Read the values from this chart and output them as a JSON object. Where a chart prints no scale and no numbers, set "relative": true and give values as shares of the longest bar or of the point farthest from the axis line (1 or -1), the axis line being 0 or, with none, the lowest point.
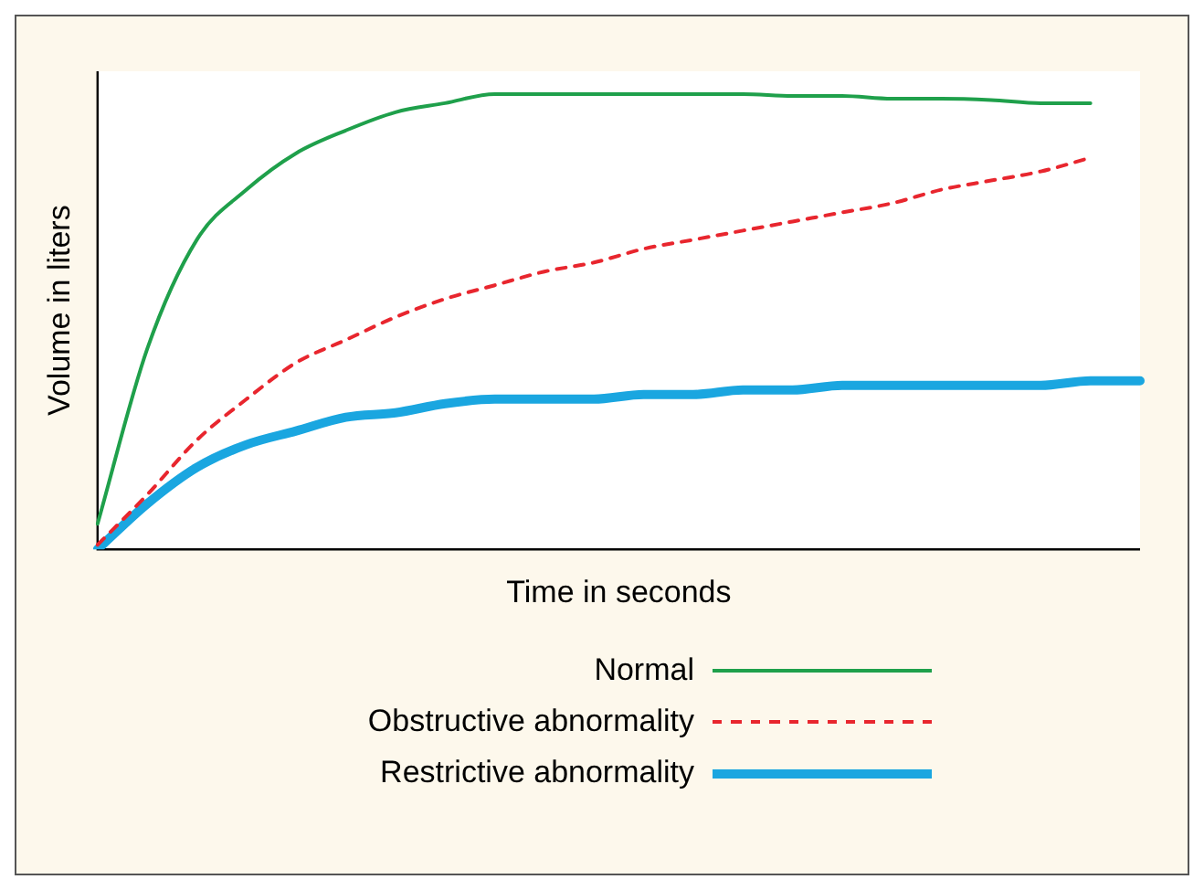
{
  "chart_data": {
    "type": "line",
    "relative": true,
    "xlabel": "Time in seconds",
    "ylabel": "Volume in liters",
    "legend": "bottom",
    "grid": false,
    "marker": "none",
    "categories": [
      null,
      null,
      null,
      null,
      null,
      null,
      null,
      null,
      null,
      null,
      null,
      null,
      null,
      null,
      null,
      null,
      null,
      null,
      null,
      null,
      null,
      null
    ],
    "series": [
      {
        "name": "Normal",
        "color": "#1fa04b",
        "line_style": "solid",
        "values": [
          0.056,
          0.44,
          0.68,
          0.79,
          0.87,
          0.92,
          0.96,
          0.98,
          1.0,
          1.0,
          1.0,
          1.0,
          1.0,
          1.0,
          0.996,
          0.996,
          0.99,
          0.99,
          0.987,
          0.98,
          0.98,
          null
        ]
      },
      {
        "name": "Obstructive abnormality",
        "color": "#e8262e",
        "line_style": "dashed",
        "values": [
          0.01,
          0.12,
          0.24,
          0.33,
          0.41,
          0.46,
          0.51,
          0.55,
          0.58,
          0.61,
          0.63,
          0.66,
          0.68,
          0.7,
          0.72,
          0.74,
          0.76,
          0.79,
          0.81,
          0.83,
          0.86,
          null
        ]
      },
      {
        "name": "Restrictive abnormality",
        "color": "#1aa6e0",
        "line_style": "solid",
        "values": [
          0,
          0.1,
          0.18,
          0.23,
          0.26,
          0.29,
          0.3,
          0.32,
          0.33,
          0.33,
          0.33,
          0.34,
          0.34,
          0.35,
          0.35,
          0.36,
          0.36,
          0.36,
          0.36,
          0.36,
          0.37,
          0.37
        ]
      }
    ]
  }
}
